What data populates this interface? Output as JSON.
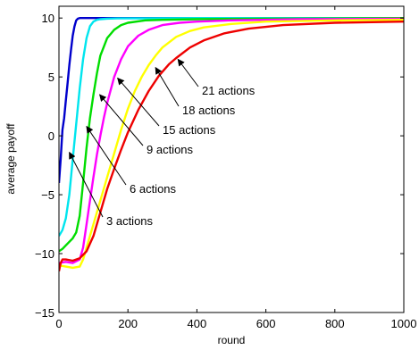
{
  "chart_data": {
    "type": "line",
    "xlabel": "round",
    "ylabel": "average payoff",
    "xlim": [
      0,
      1000
    ],
    "ylim": [
      -15,
      11
    ],
    "grid": false,
    "x_ticks": [
      0,
      200,
      400,
      600,
      800,
      1000
    ],
    "x_tick_labels": [
      "0",
      "200",
      "400",
      "600",
      "800",
      "1000"
    ],
    "y_ticks": [
      -15,
      -10,
      -5,
      0,
      5,
      10
    ],
    "y_tick_labels": [
      "−15",
      "−10",
      "−5",
      "0",
      "5",
      "10"
    ],
    "series": [
      {
        "color": "#0000cc",
        "x": [
          0,
          5,
          10,
          15,
          20,
          25,
          30,
          35,
          40,
          45,
          50,
          55,
          60,
          70,
          80,
          100,
          150,
          300,
          600,
          1000
        ],
        "y": [
          -4,
          -2,
          0.5,
          1.5,
          3,
          4.5,
          6,
          7.3,
          8.5,
          9.3,
          9.8,
          9.95,
          10,
          10,
          10,
          10,
          10,
          10,
          10,
          10
        ]
      },
      {
        "color": "#00e5ee",
        "x": [
          0,
          10,
          20,
          30,
          40,
          50,
          60,
          70,
          80,
          90,
          100,
          110,
          120,
          140,
          170,
          250,
          400,
          700,
          1000
        ],
        "y": [
          -8.5,
          -8,
          -7,
          -5,
          -2,
          1,
          4,
          6.5,
          8.3,
          9.3,
          9.7,
          9.85,
          9.9,
          9.95,
          9.97,
          9.98,
          10,
          10,
          10
        ]
      },
      {
        "color": "#00dd00",
        "x": [
          0,
          10,
          20,
          30,
          40,
          50,
          60,
          70,
          80,
          90,
          100,
          110,
          120,
          140,
          160,
          180,
          200,
          250,
          300,
          400,
          600,
          1000
        ],
        "y": [
          -9.8,
          -9.6,
          -9.3,
          -9.0,
          -8.7,
          -8.2,
          -6.8,
          -4,
          -1,
          1.5,
          3.5,
          5.3,
          6.8,
          8.3,
          9.0,
          9.4,
          9.6,
          9.8,
          9.85,
          9.9,
          9.95,
          10
        ]
      },
      {
        "color": "#ff00ff",
        "x": [
          0,
          20,
          40,
          60,
          70,
          80,
          90,
          100,
          110,
          120,
          130,
          140,
          160,
          180,
          200,
          230,
          260,
          300,
          350,
          400,
          500,
          700,
          1000
        ],
        "y": [
          -10.8,
          -10.7,
          -10.8,
          -10.5,
          -9.5,
          -7.5,
          -5.5,
          -3.5,
          -1.6,
          0,
          1.5,
          2.8,
          5,
          6.5,
          7.6,
          8.5,
          9.0,
          9.4,
          9.6,
          9.7,
          9.8,
          9.9,
          9.95
        ]
      },
      {
        "color": "#ffff00",
        "x": [
          0,
          20,
          40,
          60,
          70,
          80,
          90,
          100,
          120,
          140,
          160,
          180,
          200,
          220,
          240,
          260,
          280,
          300,
          340,
          380,
          420,
          500,
          600,
          800,
          1000
        ],
        "y": [
          -11,
          -11.1,
          -11.2,
          -11.1,
          -10.5,
          -9.5,
          -8.5,
          -7.5,
          -5.5,
          -3.5,
          -1.5,
          0.5,
          2.3,
          3.8,
          5,
          6,
          6.8,
          7.5,
          8.4,
          8.9,
          9.2,
          9.5,
          9.7,
          9.8,
          9.85
        ]
      },
      {
        "color": "#ee0000",
        "x": [
          0,
          5,
          10,
          20,
          40,
          60,
          80,
          100,
          120,
          140,
          160,
          180,
          200,
          230,
          260,
          290,
          320,
          340,
          380,
          420,
          480,
          550,
          650,
          800,
          1000
        ],
        "y": [
          -11.5,
          -10.8,
          -10.5,
          -10.5,
          -10.6,
          -10.4,
          -9.8,
          -8.5,
          -6.5,
          -4.5,
          -2.8,
          -1.2,
          0.3,
          2.2,
          3.8,
          5.1,
          6.1,
          6.6,
          7.5,
          8.1,
          8.7,
          9.1,
          9.4,
          9.6,
          9.7
        ]
      }
    ],
    "annotations": [
      {
        "text": "21 actions",
        "arrow_to": [
          345,
          6.5
        ]
      },
      {
        "text": "18 actions",
        "arrow_to": [
          280,
          5.8
        ]
      },
      {
        "text": "15 actions",
        "arrow_to": [
          170,
          4.9
        ]
      },
      {
        "text": "9 actions",
        "arrow_to": [
          118,
          3.5
        ]
      },
      {
        "text": "6 actions",
        "arrow_to": [
          80,
          0.8
        ]
      },
      {
        "text": "3 actions",
        "arrow_to": [
          30,
          -1.4
        ]
      }
    ]
  }
}
